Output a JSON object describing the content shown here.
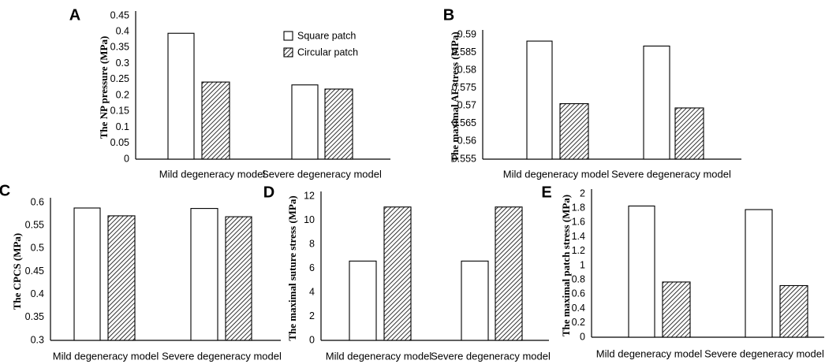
{
  "legend": {
    "square": "Square patch",
    "circular": "Circular patch"
  },
  "chart_data": [
    {
      "panel": "A",
      "type": "bar",
      "categories": [
        "Mild degeneracy model",
        "Severe degeneracy model"
      ],
      "series": [
        {
          "name": "Square patch",
          "values": [
            0.395,
            0.233
          ]
        },
        {
          "name": "Circular patch",
          "values": [
            0.242,
            0.22
          ]
        }
      ],
      "ylabel": "The NP pressure (MPa)",
      "ylim": [
        0,
        0.45
      ],
      "yticks": [
        "0",
        "0.05",
        "0.1",
        "0.15",
        "0.2",
        "0.25",
        "0.3",
        "0.35",
        "0.4",
        "0.45"
      ],
      "legend": true
    },
    {
      "panel": "B",
      "type": "bar",
      "categories": [
        "Mild degeneracy model",
        "Severe degeneracy model"
      ],
      "series": [
        {
          "name": "Square patch",
          "values": [
            0.5882,
            0.5868
          ]
        },
        {
          "name": "Circular patch",
          "values": [
            0.5706,
            0.5694
          ]
        }
      ],
      "ylabel": "The maximal AF stress (MPa)",
      "ylim": [
        0.555,
        0.59
      ],
      "yticks": [
        "0.555",
        "0.56",
        "0.565",
        "0.57",
        "0.575",
        "0.58",
        "0.585",
        "0.59"
      ]
    },
    {
      "panel": "C",
      "type": "bar",
      "categories": [
        "Mild degeneracy model",
        "Severe degeneracy model"
      ],
      "series": [
        {
          "name": "Square patch",
          "values": [
            0.588,
            0.587
          ]
        },
        {
          "name": "Circular patch",
          "values": [
            0.571,
            0.569
          ]
        }
      ],
      "ylabel": "The CPCS (MPa)",
      "ylim": [
        0.3,
        0.6
      ],
      "yticks": [
        "0.3",
        "0.35",
        "0.4",
        "0.45",
        "0.5",
        "0.55",
        "0.6"
      ]
    },
    {
      "panel": "D",
      "type": "bar",
      "categories": [
        "Mild degeneracy model",
        "Severe degeneracy model"
      ],
      "series": [
        {
          "name": "Square patch",
          "values": [
            6.6,
            6.6
          ]
        },
        {
          "name": "Circular patch",
          "values": [
            11.1,
            11.1
          ]
        }
      ],
      "ylabel": "The maximal suture stress (MPa)",
      "ylim": [
        0,
        12
      ],
      "yticks": [
        "0",
        "2",
        "4",
        "6",
        "8",
        "10",
        "12"
      ]
    },
    {
      "panel": "E",
      "type": "bar",
      "categories": [
        "Mild degeneracy model",
        "Severe degeneracy model"
      ],
      "series": [
        {
          "name": "Square patch",
          "values": [
            1.83,
            1.78
          ]
        },
        {
          "name": "Circular patch",
          "values": [
            0.77,
            0.72
          ]
        }
      ],
      "ylabel": "The maximal patch stress (MPa)",
      "ylim": [
        0,
        2
      ],
      "yticks": [
        "0",
        "0.2",
        "0.4",
        "0.6",
        "0.8",
        "1",
        "1.2",
        "1.4",
        "1.6",
        "1.8",
        "2"
      ]
    }
  ]
}
